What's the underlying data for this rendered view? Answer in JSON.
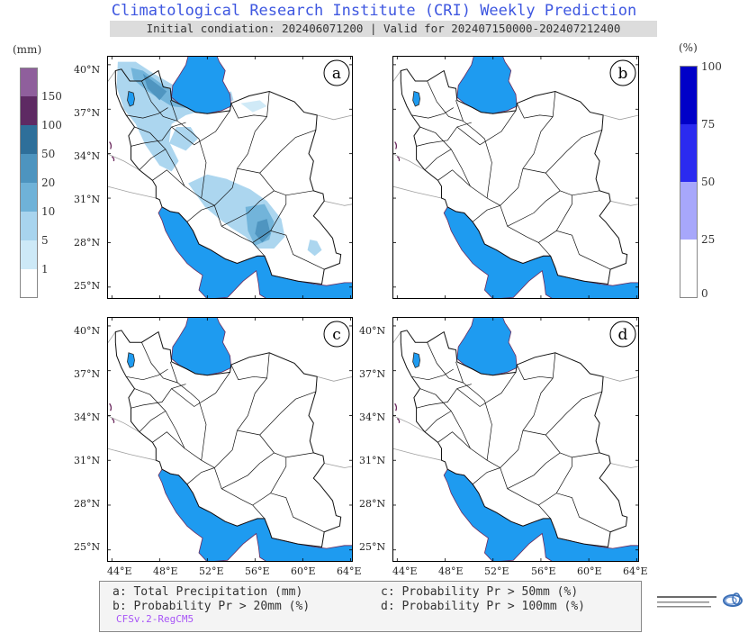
{
  "header": {
    "title": "Climatological Research Institute (CRI) Weekly Prediction",
    "subtitle": "Initial condiation: 202406071200 | Valid for 202407150000-202407212400"
  },
  "colors": {
    "sea": "#1e9bf0",
    "precip_1": "#cde9f7",
    "precip_5": "#a8d4ee",
    "precip_10": "#6fb2d8",
    "precip_20": "#4d94bf",
    "precip_50": "#2e6f9a",
    "precip_100": "#5e2a63",
    "precip_150": "#8f5f9c",
    "prob_25": "#a7a7fb",
    "prob_50": "#2b2bf0",
    "prob_75": "#0000c8"
  },
  "legend_precip": {
    "title": "(mm)",
    "levels": [
      "1",
      "5",
      "10",
      "20",
      "50",
      "100",
      "150"
    ]
  },
  "legend_prob": {
    "title": "(%)",
    "levels": [
      "0",
      "25",
      "50",
      "75",
      "100"
    ]
  },
  "axes": {
    "lat_labels": [
      "40°N",
      "37°N",
      "34°N",
      "31°N",
      "28°N",
      "25°N"
    ],
    "lon_labels": [
      "44°E",
      "48°E",
      "52°E",
      "56°E",
      "60°E",
      "64°E"
    ]
  },
  "panels": [
    {
      "letter": "a",
      "variable": "Total Precipitation (mm)"
    },
    {
      "letter": "b",
      "variable": "Probability Pr > 20mm (%)"
    },
    {
      "letter": "c",
      "variable": "Probability Pr > 50mm (%)"
    },
    {
      "letter": "d",
      "variable": "Probability Pr > 100mm (%)"
    }
  ],
  "notes": {
    "a": "a: Total Precipitation (mm)",
    "b": "b: Probability Pr > 20mm (%)",
    "c": "c: Probability Pr > 50mm (%)",
    "d": "d: Probability Pr > 100mm (%)",
    "model": "CFSv.2-RegCM5"
  },
  "logo_icon": "institute-logo-icon"
}
